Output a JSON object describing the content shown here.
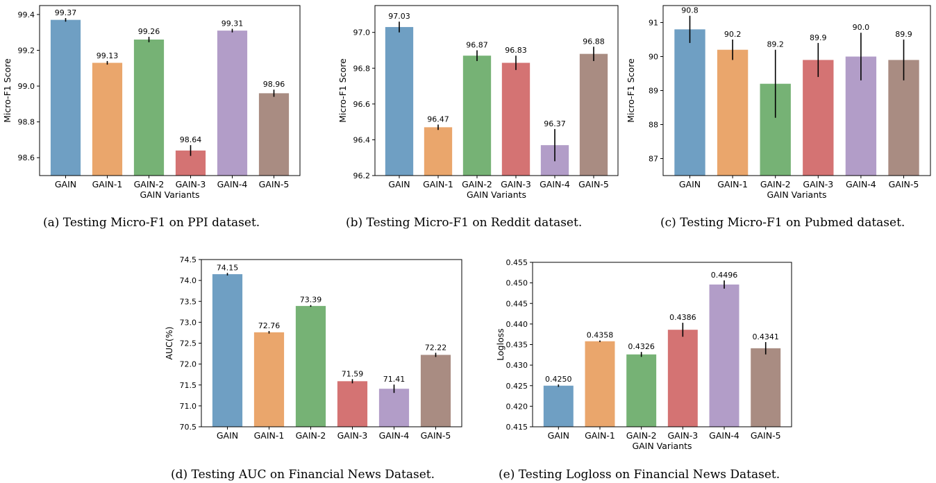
{
  "chart_data": [
    {
      "id": "a",
      "type": "bar",
      "caption": "(a) Testing Micro-F1 on PPI dataset.",
      "xlabel": "GAIN Variants",
      "ylabel": "Micro-F1 Score",
      "categories": [
        "GAIN",
        "GAIN-1",
        "GAIN-2",
        "GAIN-3",
        "GAIN-4",
        "GAIN-5"
      ],
      "values": [
        99.37,
        99.13,
        99.26,
        98.64,
        99.31,
        98.96
      ],
      "value_labels": [
        "99.37",
        "99.13",
        "99.26",
        "98.64",
        "99.31",
        "98.96"
      ],
      "errors": [
        0.01,
        0.01,
        0.015,
        0.03,
        0.01,
        0.02
      ],
      "ylim": [
        98.5,
        99.45
      ],
      "yticks": [
        98.6,
        98.8,
        99.0,
        99.2,
        99.4
      ],
      "ytick_labels": [
        "98.6",
        "98.8",
        "99.0",
        "99.2",
        "99.4"
      ]
    },
    {
      "id": "b",
      "type": "bar",
      "caption": "(b) Testing Micro-F1 on Reddit dataset.",
      "xlabel": "GAIN Variants",
      "ylabel": "Micro-F1 Score",
      "categories": [
        "GAIN",
        "GAIN-1",
        "GAIN-2",
        "GAIN-3",
        "GAIN-4",
        "GAIN-5"
      ],
      "values": [
        97.03,
        96.47,
        96.87,
        96.83,
        96.37,
        96.88
      ],
      "value_labels": [
        "97.03",
        "96.47",
        "96.87",
        "96.83",
        "96.37",
        "96.88"
      ],
      "errors": [
        0.03,
        0.015,
        0.03,
        0.04,
        0.09,
        0.04
      ],
      "ylim": [
        96.2,
        97.15
      ],
      "yticks": [
        96.2,
        96.4,
        96.6,
        96.8,
        97.0
      ],
      "ytick_labels": [
        "96.2",
        "96.4",
        "96.6",
        "96.8",
        "97.0"
      ]
    },
    {
      "id": "c",
      "type": "bar",
      "caption": "(c) Testing Micro-F1 on Pubmed dataset.",
      "xlabel": "GAIN Variants",
      "ylabel": "Micro-F1 Score",
      "categories": [
        "GAIN",
        "GAIN-1",
        "GAIN-2",
        "GAIN-3",
        "GAIN-4",
        "GAIN-5"
      ],
      "values": [
        90.8,
        90.2,
        89.2,
        89.9,
        90.0,
        89.9
      ],
      "value_labels": [
        "90.8",
        "90.2",
        "89.2",
        "89.9",
        "90.0",
        "89.9"
      ],
      "errors": [
        0.4,
        0.3,
        1.0,
        0.5,
        0.7,
        0.6
      ],
      "ylim": [
        86.5,
        91.5
      ],
      "yticks": [
        87,
        88,
        89,
        90,
        91
      ],
      "ytick_labels": [
        "87",
        "88",
        "89",
        "90",
        "91"
      ]
    },
    {
      "id": "d",
      "type": "bar",
      "caption": "(d) Testing AUC on Financial News Dataset.",
      "xlabel": "",
      "ylabel": "AUC(%)",
      "categories": [
        "GAIN",
        "GAIN-1",
        "GAIN-2",
        "GAIN-3",
        "GAIN-4",
        "GAIN-5"
      ],
      "values": [
        74.15,
        72.76,
        73.39,
        71.59,
        71.41,
        72.22
      ],
      "value_labels": [
        "74.15",
        "72.76",
        "73.39",
        "71.59",
        "71.41",
        "72.22"
      ],
      "errors": [
        0.03,
        0.03,
        0.02,
        0.05,
        0.1,
        0.05
      ],
      "ylim": [
        70.5,
        74.5
      ],
      "yticks": [
        70.5,
        71.0,
        71.5,
        72.0,
        72.5,
        73.0,
        73.5,
        74.0,
        74.5
      ],
      "ytick_labels": [
        "70.5",
        "71.0",
        "71.5",
        "72.0",
        "72.5",
        "73.0",
        "73.5",
        "74.0",
        "74.5"
      ]
    },
    {
      "id": "e",
      "type": "bar",
      "caption": "(e) Testing Logloss on Financial News Dataset.",
      "xlabel": "GAIN Variants",
      "ylabel": "Logloss",
      "categories": [
        "GAIN",
        "GAIN-1",
        "GAIN-2",
        "GAIN-3",
        "GAIN-4",
        "GAIN-5"
      ],
      "values": [
        0.425,
        0.4358,
        0.4326,
        0.4386,
        0.4496,
        0.4341
      ],
      "value_labels": [
        "0.4250",
        "0.4358",
        "0.4326",
        "0.4386",
        "0.4496",
        "0.4341"
      ],
      "errors": [
        0.0003,
        0.0002,
        0.0006,
        0.0017,
        0.001,
        0.0015
      ],
      "ylim": [
        0.415,
        0.455
      ],
      "yticks": [
        0.415,
        0.42,
        0.425,
        0.43,
        0.435,
        0.44,
        0.445,
        0.45,
        0.455
      ],
      "ytick_labels": [
        "0.415",
        "0.420",
        "0.425",
        "0.430",
        "0.435",
        "0.440",
        "0.445",
        "0.450",
        "0.455"
      ]
    }
  ],
  "colors": [
    "#6f9fc3",
    "#eaa66c",
    "#76b275",
    "#d47373",
    "#b29dc8",
    "#a98c82"
  ]
}
